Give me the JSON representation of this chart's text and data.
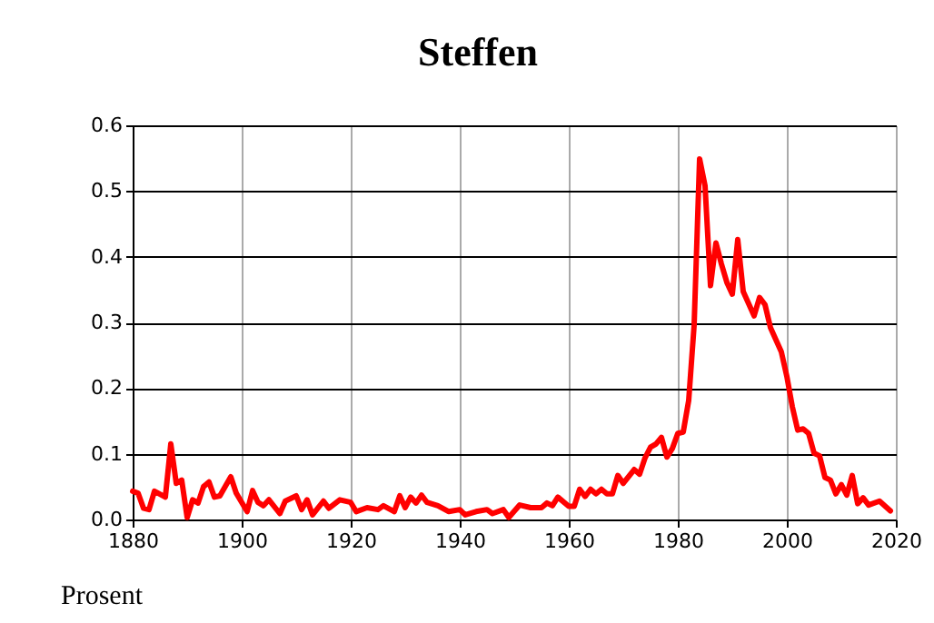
{
  "chart_data": {
    "type": "line",
    "title": "Steffen",
    "ylabel": "Prosent",
    "x": [
      1880,
      1881,
      1882,
      1883,
      1884,
      1886,
      1887,
      1888,
      1889,
      1890,
      1891,
      1892,
      1893,
      1894,
      1895,
      1896,
      1898,
      1899,
      1901,
      1902,
      1903,
      1904,
      1905,
      1907,
      1908,
      1910,
      1911,
      1912,
      1913,
      1915,
      1916,
      1918,
      1920,
      1921,
      1923,
      1925,
      1926,
      1928,
      1929,
      1930,
      1931,
      1932,
      1933,
      1934,
      1936,
      1938,
      1940,
      1941,
      1943,
      1945,
      1946,
      1948,
      1949,
      1951,
      1953,
      1955,
      1956,
      1957,
      1958,
      1960,
      1961,
      1962,
      1963,
      1964,
      1965,
      1966,
      1967,
      1968,
      1969,
      1970,
      1972,
      1973,
      1974,
      1975,
      1976,
      1977,
      1978,
      1979,
      1980,
      1981,
      1982,
      1983,
      1984,
      1985,
      1986,
      1987,
      1988,
      1989,
      1990,
      1991,
      1992,
      1994,
      1995,
      1996,
      1997,
      1999,
      2000,
      2001,
      2002,
      2003,
      2004,
      2005,
      2006,
      2007,
      2008,
      2009,
      2010,
      2011,
      2012,
      2013,
      2014,
      2015,
      2017,
      2019
    ],
    "series": [
      {
        "color": "#ff0000",
        "values": [
          0.043,
          0.04,
          0.017,
          0.015,
          0.043,
          0.034,
          0.115,
          0.055,
          0.06,
          0.003,
          0.03,
          0.025,
          0.05,
          0.057,
          0.034,
          0.036,
          0.065,
          0.04,
          0.012,
          0.044,
          0.026,
          0.021,
          0.03,
          0.009,
          0.028,
          0.036,
          0.015,
          0.03,
          0.007,
          0.028,
          0.017,
          0.03,
          0.026,
          0.012,
          0.018,
          0.015,
          0.021,
          0.012,
          0.036,
          0.018,
          0.034,
          0.025,
          0.037,
          0.026,
          0.021,
          0.012,
          0.015,
          0.007,
          0.012,
          0.015,
          0.009,
          0.015,
          0.003,
          0.022,
          0.018,
          0.018,
          0.025,
          0.021,
          0.034,
          0.02,
          0.02,
          0.046,
          0.035,
          0.046,
          0.039,
          0.046,
          0.039,
          0.039,
          0.067,
          0.055,
          0.076,
          0.069,
          0.094,
          0.11,
          0.115,
          0.125,
          0.095,
          0.108,
          0.131,
          0.133,
          0.181,
          0.296,
          0.549,
          0.508,
          0.356,
          0.421,
          0.389,
          0.361,
          0.343,
          0.426,
          0.347,
          0.31,
          0.338,
          0.327,
          0.292,
          0.255,
          0.218,
          0.172,
          0.136,
          0.138,
          0.131,
          0.101,
          0.097,
          0.064,
          0.06,
          0.039,
          0.053,
          0.037,
          0.067,
          0.024,
          0.033,
          0.022,
          0.028,
          0.013
        ]
      }
    ],
    "xlim": [
      1880,
      2020
    ],
    "xticks": [
      1880,
      1900,
      1920,
      1940,
      1960,
      1980,
      2000,
      2020
    ],
    "ylim": [
      0,
      0.6
    ],
    "yticks": [
      {
        "value": 0,
        "label": "0.0"
      },
      0.1,
      0.2,
      0.3,
      0.4,
      0.5,
      0.6
    ],
    "grid": true,
    "marker": "none",
    "line_style": "solid"
  }
}
